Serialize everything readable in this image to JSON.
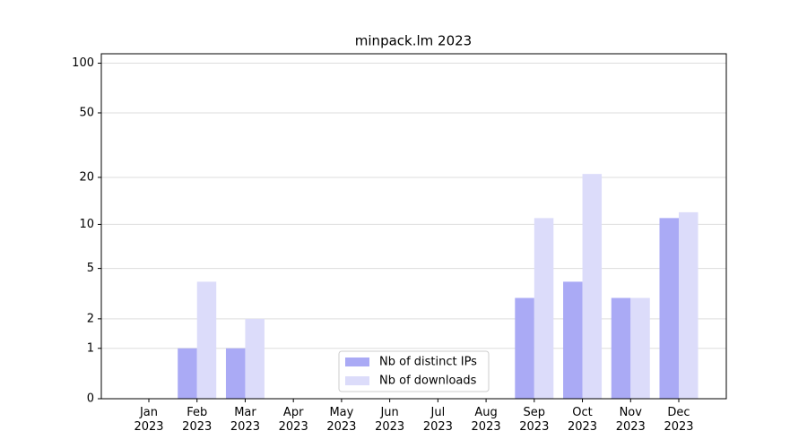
{
  "chart_data": {
    "type": "bar",
    "title": "minpack.lm 2023",
    "categories": [
      "Jan\n2023",
      "Feb\n2023",
      "Mar\n2023",
      "Apr\n2023",
      "May\n2023",
      "Jun\n2023",
      "Jul\n2023",
      "Aug\n2023",
      "Sep\n2023",
      "Oct\n2023",
      "Nov\n2023",
      "Dec\n2023"
    ],
    "series": [
      {
        "name": "Nb of distinct IPs",
        "color": "#aaaaf5",
        "values": [
          0,
          1,
          1,
          0,
          0,
          0,
          0,
          0,
          3,
          4,
          3,
          11
        ]
      },
      {
        "name": "Nb of downloads",
        "color": "#dcdcfa",
        "values": [
          0,
          4,
          2,
          0,
          0,
          0,
          0,
          0,
          11,
          21,
          3,
          12
        ]
      }
    ],
    "ylim": [
      0,
      114
    ],
    "yticks": [
      0,
      1,
      2,
      5,
      10,
      20,
      50,
      100
    ],
    "yscale": "symlog",
    "grid": true,
    "legend": "lower center"
  }
}
